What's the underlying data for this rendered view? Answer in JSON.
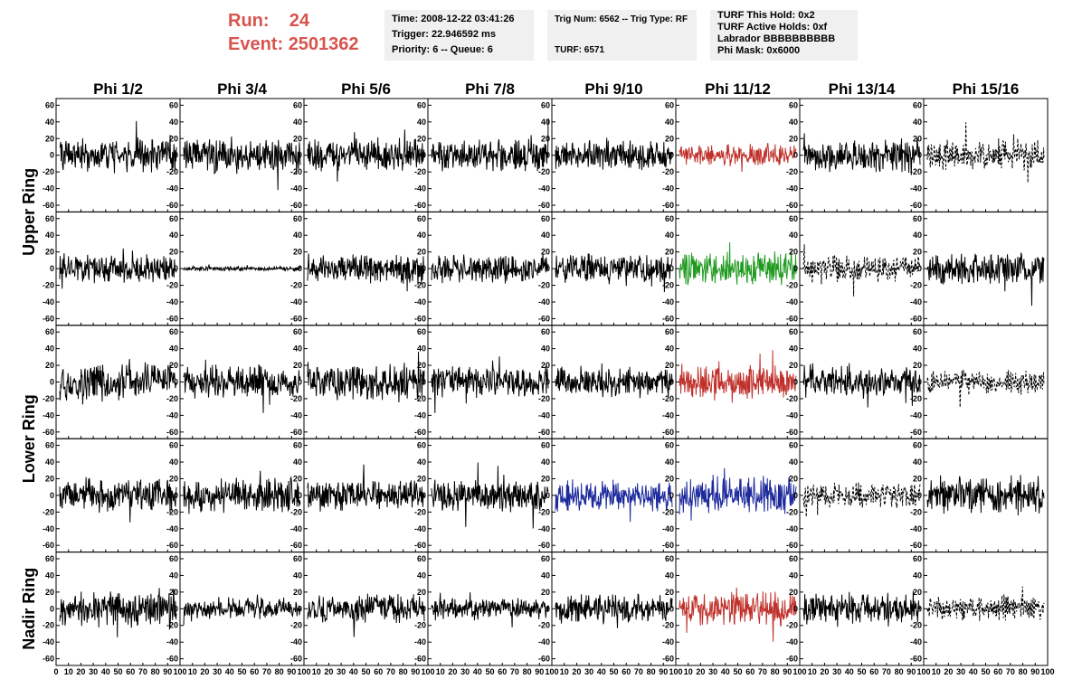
{
  "header": {
    "run_label": "Run:",
    "run_value": "24",
    "event_label": "Event:",
    "event_value": "2501362"
  },
  "info_panels": {
    "timing": {
      "time": "Time: 2008-12-22 03:41:26",
      "trigger": "Trigger: 22.946592 ms",
      "priority": "Priority: 6 -- Queue: 6"
    },
    "trig": {
      "trig_num": "Trig Num: 6562 -- Trig Type: RF",
      "turf": "TURF: 6571"
    },
    "turf": {
      "this_hold": "TURF This Hold: 0x2",
      "active_holds": "TURF Active Holds: 0xf",
      "labrador": "Labrador BBBBBBBBBB",
      "phi_mask": "Phi Mask: 0x6000"
    }
  },
  "colors": {
    "black": "#000000",
    "red": "#c0312b",
    "green": "#1f9a1f",
    "blue": "#1d2a9c",
    "header_red": "#d9534f",
    "panel_bg": "#f0f0f0"
  },
  "chart_data": {
    "type": "line",
    "columns": [
      "Phi 1/2",
      "Phi 3/4",
      "Phi 5/6",
      "Phi 7/8",
      "Phi 9/10",
      "Phi 11/12",
      "Phi 13/14",
      "Phi 15/16"
    ],
    "ring_labels": [
      {
        "text": "Upper Ring",
        "rows": [
          0,
          1
        ]
      },
      {
        "text": "Lower Ring",
        "rows": [
          2,
          3
        ]
      },
      {
        "text": "Nadir Ring",
        "rows": [
          4
        ]
      }
    ],
    "y_ticks": [
      -60,
      -40,
      -20,
      0,
      20,
      40,
      60
    ],
    "ylim": [
      -68,
      68
    ],
    "xlim": [
      0,
      100
    ],
    "x_tick_labels": [
      [
        "0",
        "10",
        "20",
        "30",
        "40",
        "50",
        "60",
        "70",
        "80",
        "90",
        "100"
      ],
      [
        "10",
        "20",
        "30",
        "40",
        "50",
        "60",
        "70",
        "80",
        "90",
        "100"
      ],
      [
        "10",
        "20",
        "30",
        "40",
        "50",
        "60",
        "70",
        "80",
        "90",
        "100"
      ],
      [
        "10",
        "20",
        "30",
        "40",
        "50",
        "60",
        "70",
        "80",
        "90",
        "100"
      ],
      [
        "10",
        "20",
        "30",
        "40",
        "50",
        "60",
        "70",
        "80",
        "90",
        "100"
      ],
      [
        "10",
        "20",
        "30",
        "40",
        "50",
        "60",
        "70",
        "80",
        "90",
        "100"
      ],
      [
        "10",
        "20",
        "30",
        "40",
        "50",
        "60",
        "70",
        "80",
        "90",
        "100"
      ],
      [
        "10",
        "20",
        "30",
        "40",
        "50",
        "60",
        "70",
        "80",
        "90",
        "100"
      ]
    ],
    "traces": [
      [
        {
          "color": "black",
          "style": "solid",
          "amp": 14
        },
        {
          "color": "black",
          "style": "solid",
          "amp": 15
        },
        {
          "color": "black",
          "style": "solid",
          "amp": 13
        },
        {
          "color": "black",
          "style": "solid",
          "amp": 13
        },
        {
          "color": "black",
          "style": "solid",
          "amp": 12
        },
        {
          "color": "red",
          "style": "solid",
          "amp": 9
        },
        {
          "color": "black",
          "style": "solid",
          "amp": 14
        },
        {
          "color": "black",
          "style": "dashed",
          "amp": 13
        }
      ],
      [
        {
          "color": "black",
          "style": "solid",
          "amp": 12
        },
        {
          "color": "black",
          "style": "solid",
          "amp": 2
        },
        {
          "color": "black",
          "style": "solid",
          "amp": 13
        },
        {
          "color": "black",
          "style": "solid",
          "amp": 12
        },
        {
          "color": "black",
          "style": "solid",
          "amp": 12
        },
        {
          "color": "green",
          "style": "solid",
          "amp": 15
        },
        {
          "color": "black",
          "style": "dashed",
          "amp": 11
        },
        {
          "color": "black",
          "style": "solid",
          "amp": 14
        }
      ],
      [
        {
          "color": "black",
          "style": "solid",
          "amp": 15
        },
        {
          "color": "black",
          "style": "solid",
          "amp": 14
        },
        {
          "color": "black",
          "style": "solid",
          "amp": 16
        },
        {
          "color": "black",
          "style": "solid",
          "amp": 13
        },
        {
          "color": "black",
          "style": "solid",
          "amp": 12
        },
        {
          "color": "red",
          "style": "solid",
          "amp": 14
        },
        {
          "color": "black",
          "style": "solid",
          "amp": 13
        },
        {
          "color": "black",
          "style": "dashed",
          "amp": 10
        }
      ],
      [
        {
          "color": "black",
          "style": "solid",
          "amp": 14
        },
        {
          "color": "black",
          "style": "solid",
          "amp": 15
        },
        {
          "color": "black",
          "style": "solid",
          "amp": 13
        },
        {
          "color": "black",
          "style": "solid",
          "amp": 13
        },
        {
          "color": "blue",
          "style": "solid",
          "amp": 13
        },
        {
          "color": "blue",
          "style": "solid",
          "amp": 16
        },
        {
          "color": "black",
          "style": "dashed",
          "amp": 11
        },
        {
          "color": "black",
          "style": "solid",
          "amp": 16
        }
      ],
      [
        {
          "color": "black",
          "style": "solid",
          "amp": 16
        },
        {
          "color": "black",
          "style": "solid",
          "amp": 9
        },
        {
          "color": "black",
          "style": "solid",
          "amp": 12
        },
        {
          "color": "black",
          "style": "solid",
          "amp": 9
        },
        {
          "color": "black",
          "style": "solid",
          "amp": 12
        },
        {
          "color": "red",
          "style": "solid",
          "amp": 15
        },
        {
          "color": "black",
          "style": "solid",
          "amp": 14
        },
        {
          "color": "black",
          "style": "dashed",
          "amp": 10
        }
      ]
    ]
  }
}
